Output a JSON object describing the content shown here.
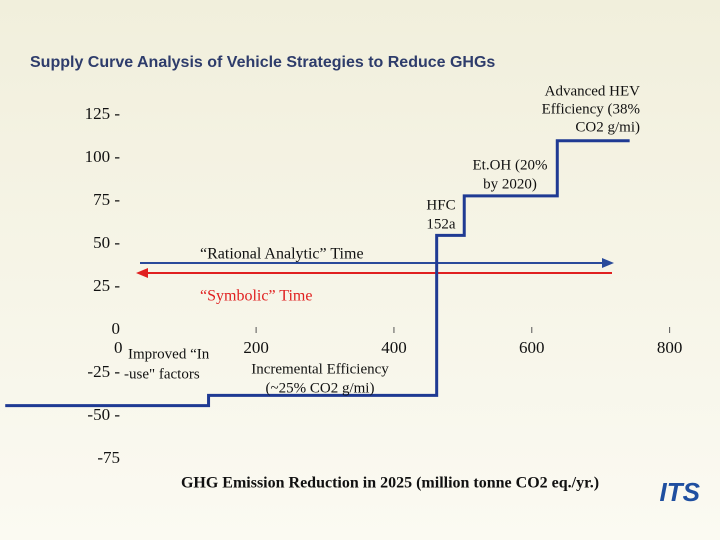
{
  "chart_data": {
    "type": "line",
    "title": "Supply Curve Analysis of Vehicle Strategies to Reduce GHGs",
    "x_label": "GHG Emission Reduction in 2025 (million tonne CO2 eq./yr.)",
    "xlim": [
      -171.6,
      873.1
    ],
    "xticks": [
      0,
      200,
      400,
      600,
      800
    ],
    "ylim": [
      -75,
      125
    ],
    "yticks": [
      {
        "value": 125,
        "label": "125 -"
      },
      {
        "value": 100,
        "label": "100 -"
      },
      {
        "value": 75,
        "label": "75 -"
      },
      {
        "value": 50,
        "label": "50 -"
      },
      {
        "value": 25,
        "label": "25 -"
      },
      0,
      {
        "value": -25,
        "label": "-25 -"
      },
      {
        "value": -50,
        "label": "-50 -"
      },
      -75
    ],
    "series": [
      {
        "color": "#1f3a93",
        "x": [
          -164,
          131,
          131,
          462,
          462,
          502,
          502,
          637,
          637,
          742
        ],
        "values": [
          -44,
          -44,
          -38,
          -38,
          55,
          55,
          78,
          78,
          110,
          110
        ]
      }
    ],
    "annotations": [
      {
        "lines": [
          "Advanced HEV",
          "Efficiency (38%",
          "CO2 g/mi)"
        ]
      },
      {
        "lines": [
          "Et.OH (20%",
          "by 2020)"
        ]
      },
      {
        "lines": [
          "HFC",
          "152a"
        ]
      },
      {
        "lines": [
          "“Rational Analytic” Time"
        ]
      },
      {
        "lines": [
          "“Symbolic” Time"
        ]
      },
      {
        "lines": [
          "Improved “In",
          "-use\" factors"
        ]
      },
      {
        "lines": [
          "Incremental Efficiency",
          "(~25% CO2 g/mi)"
        ]
      }
    ],
    "logo": "ITS"
  }
}
